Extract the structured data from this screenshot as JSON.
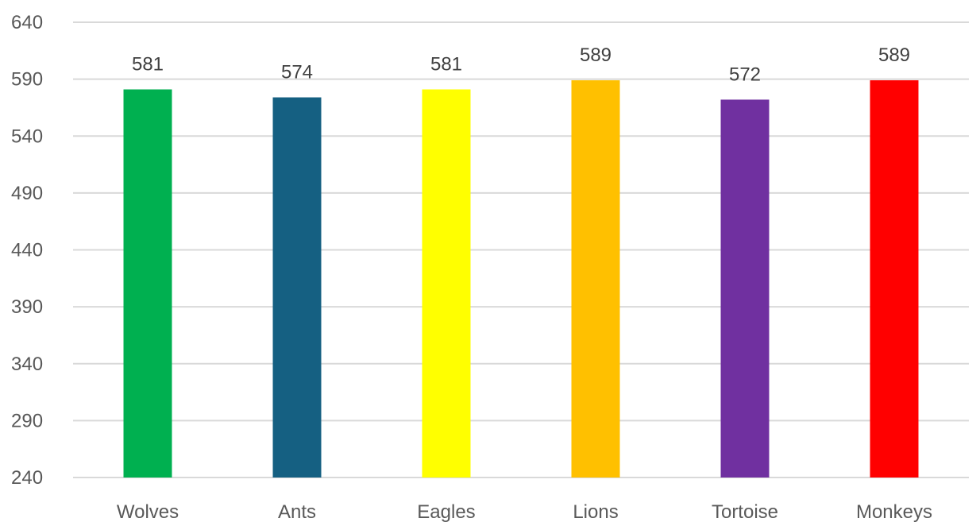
{
  "chart_data": {
    "type": "bar",
    "title": "",
    "xlabel": "",
    "ylabel": "",
    "categories": [
      "Wolves",
      "Ants",
      "Eagles",
      "Lions",
      "Tortoise",
      "Monkeys"
    ],
    "values": [
      581,
      574,
      581,
      589,
      572,
      589
    ],
    "colors": [
      "#00b050",
      "#156082",
      "#ffff00",
      "#ffc000",
      "#7030a0",
      "#ff0000"
    ],
    "ylim": [
      240,
      640
    ],
    "yticks": [
      240,
      290,
      340,
      390,
      440,
      490,
      540,
      590,
      640
    ],
    "grid": true,
    "legend": "none",
    "data_labels": true
  }
}
